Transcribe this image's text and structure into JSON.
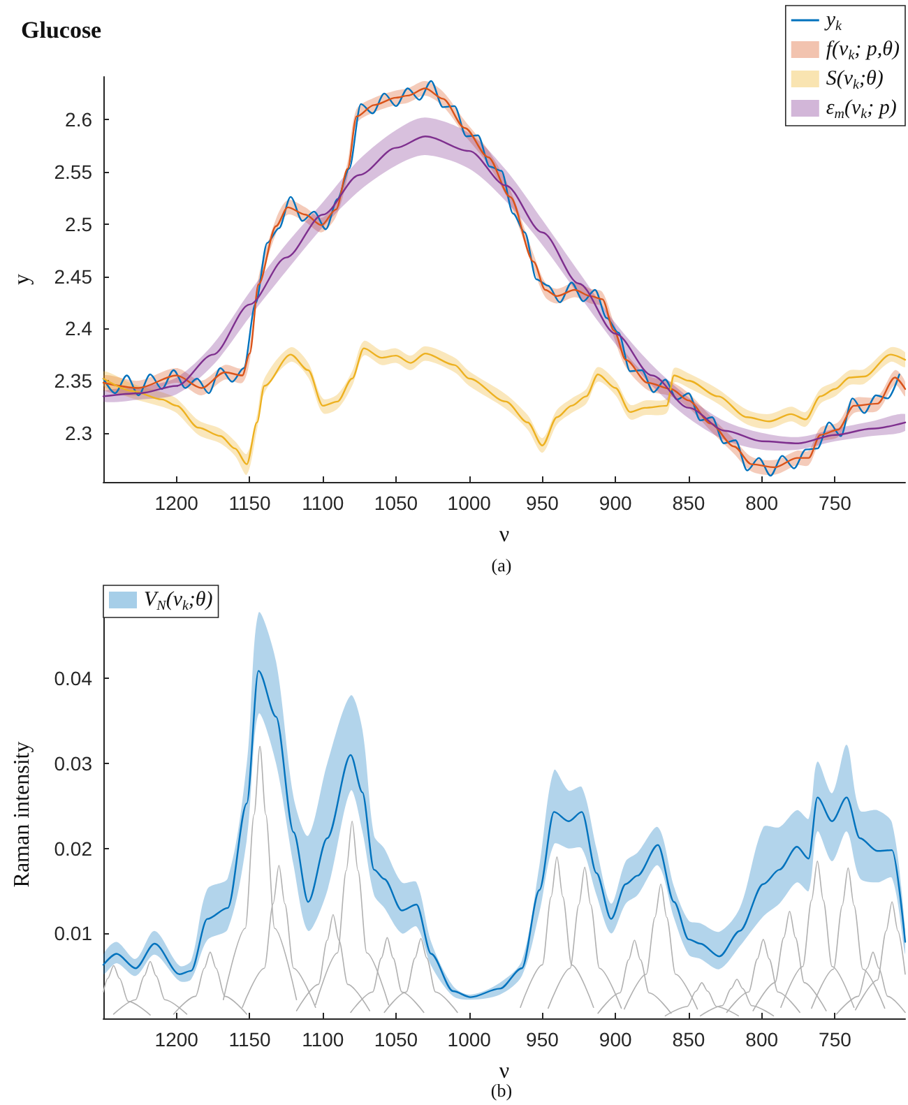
{
  "chart_data": [
    {
      "type": "line",
      "title": "Glucose",
      "xlabel": "ν",
      "ylabel": "y",
      "annotations": [
        "(a)"
      ],
      "xlim": [
        1250,
        702
      ],
      "xticks": [
        1200,
        1150,
        1100,
        1050,
        1000,
        950,
        900,
        850,
        800,
        750
      ],
      "ylim": [
        2.253,
        2.641
      ],
      "yticks": [
        2.3,
        2.35,
        2.4,
        2.45,
        2.5,
        2.55,
        2.6
      ],
      "grid": false,
      "legend": "top right",
      "marker": "none",
      "x": [
        1250,
        1242,
        1234,
        1226,
        1218,
        1210,
        1202,
        1194,
        1186,
        1178,
        1170,
        1162,
        1154,
        1146,
        1138,
        1130,
        1122,
        1114,
        1106,
        1098,
        1090,
        1082,
        1074,
        1066,
        1058,
        1050,
        1042,
        1034,
        1026,
        1018,
        1010,
        1002,
        994,
        986,
        978,
        970,
        962,
        954,
        946,
        938,
        930,
        922,
        914,
        906,
        898,
        890,
        882,
        874,
        866,
        858,
        850,
        842,
        834,
        826,
        818,
        810,
        802,
        794,
        786,
        778,
        770,
        762,
        754,
        746,
        738,
        730,
        722,
        714,
        706
      ],
      "series": [
        {
          "name": "y$_{k}$",
          "color": "#0072bd",
          "values": [
            2.352,
            2.338,
            2.355,
            2.336,
            2.356,
            2.342,
            2.36,
            2.343,
            2.352,
            2.338,
            2.362,
            2.349,
            2.362,
            2.424,
            2.482,
            2.496,
            2.526,
            2.503,
            2.512,
            2.495,
            2.524,
            2.553,
            2.615,
            2.606,
            2.625,
            2.613,
            2.63,
            2.619,
            2.637,
            2.612,
            2.613,
            2.584,
            2.585,
            2.555,
            2.551,
            2.51,
            2.492,
            2.447,
            2.441,
            2.425,
            2.444,
            2.426,
            2.437,
            2.41,
            2.396,
            2.359,
            2.36,
            2.339,
            2.351,
            2.332,
            2.338,
            2.312,
            2.315,
            2.29,
            2.293,
            2.264,
            2.276,
            2.259,
            2.278,
            2.266,
            2.284,
            2.285,
            2.31,
            2.297,
            2.333,
            2.319,
            2.336,
            2.333,
            2.356
          ]
        },
        {
          "name": "f(ν$_{k}$; p,θ)",
          "color": "#d95319",
          "x": [
            1250,
            1226,
            1200,
            1183,
            1167,
            1155,
            1150,
            1144,
            1132,
            1124,
            1112,
            1101,
            1091,
            1083,
            1077,
            1065,
            1050,
            1042,
            1030,
            1018,
            1003,
            987,
            972,
            956,
            948,
            940,
            928,
            917,
            909,
            901,
            893,
            878,
            862,
            850,
            835,
            819,
            807,
            791,
            776,
            768,
            760,
            748,
            737,
            721,
            709,
            702
          ],
          "values": [
            2.348,
            2.343,
            2.355,
            2.343,
            2.358,
            2.355,
            2.376,
            2.442,
            2.498,
            2.516,
            2.509,
            2.499,
            2.514,
            2.553,
            2.603,
            2.614,
            2.621,
            2.623,
            2.63,
            2.62,
            2.592,
            2.564,
            2.526,
            2.464,
            2.437,
            2.431,
            2.437,
            2.431,
            2.428,
            2.398,
            2.37,
            2.348,
            2.342,
            2.331,
            2.309,
            2.287,
            2.27,
            2.267,
            2.276,
            2.276,
            2.298,
            2.303,
            2.326,
            2.328,
            2.353,
            2.342
          ],
          "lower": [
            2.341,
            2.336,
            2.348,
            2.336,
            2.351,
            2.348,
            2.369,
            2.435,
            2.491,
            2.509,
            2.502,
            2.492,
            2.507,
            2.546,
            2.596,
            2.607,
            2.614,
            2.616,
            2.623,
            2.613,
            2.585,
            2.557,
            2.519,
            2.457,
            2.43,
            2.424,
            2.43,
            2.424,
            2.421,
            2.391,
            2.363,
            2.341,
            2.335,
            2.324,
            2.302,
            2.28,
            2.263,
            2.26,
            2.269,
            2.269,
            2.291,
            2.296,
            2.319,
            2.321,
            2.346,
            2.335
          ],
          "upper": [
            2.355,
            2.35,
            2.362,
            2.35,
            2.365,
            2.362,
            2.383,
            2.449,
            2.505,
            2.523,
            2.516,
            2.506,
            2.521,
            2.56,
            2.61,
            2.621,
            2.628,
            2.63,
            2.637,
            2.627,
            2.599,
            2.571,
            2.533,
            2.471,
            2.444,
            2.438,
            2.444,
            2.438,
            2.435,
            2.405,
            2.377,
            2.355,
            2.349,
            2.338,
            2.316,
            2.294,
            2.277,
            2.274,
            2.283,
            2.283,
            2.305,
            2.31,
            2.333,
            2.335,
            2.36,
            2.349
          ]
        },
        {
          "name": "S(ν$_{k}$;θ)",
          "color": "#edb120",
          "x": [
            1250,
            1230,
            1210,
            1200,
            1185,
            1170,
            1160,
            1152,
            1145,
            1140,
            1122,
            1110,
            1100,
            1090,
            1080,
            1072,
            1060,
            1050,
            1040,
            1030,
            1010,
            1000,
            975,
            960,
            950,
            940,
            930,
            920,
            912,
            900,
            890,
            880,
            865,
            860,
            850,
            830,
            810,
            795,
            780,
            770,
            760,
            750,
            740,
            730,
            712,
            702
          ],
          "values": [
            2.352,
            2.34,
            2.332,
            2.326,
            2.305,
            2.297,
            2.285,
            2.27,
            2.31,
            2.345,
            2.375,
            2.36,
            2.326,
            2.33,
            2.352,
            2.381,
            2.372,
            2.374,
            2.367,
            2.376,
            2.365,
            2.352,
            2.33,
            2.31,
            2.288,
            2.315,
            2.326,
            2.335,
            2.356,
            2.343,
            2.32,
            2.324,
            2.326,
            2.355,
            2.35,
            2.335,
            2.315,
            2.311,
            2.318,
            2.313,
            2.335,
            2.342,
            2.353,
            2.354,
            2.375,
            2.37
          ],
          "lower": [
            2.345,
            2.333,
            2.325,
            2.319,
            2.298,
            2.29,
            2.278,
            2.26,
            2.303,
            2.338,
            2.368,
            2.353,
            2.319,
            2.323,
            2.345,
            2.374,
            2.365,
            2.367,
            2.36,
            2.369,
            2.358,
            2.345,
            2.323,
            2.303,
            2.281,
            2.308,
            2.319,
            2.328,
            2.349,
            2.336,
            2.313,
            2.317,
            2.319,
            2.348,
            2.343,
            2.328,
            2.308,
            2.304,
            2.311,
            2.306,
            2.328,
            2.335,
            2.346,
            2.347,
            2.368,
            2.363
          ],
          "upper": [
            2.359,
            2.347,
            2.339,
            2.333,
            2.312,
            2.304,
            2.292,
            2.28,
            2.317,
            2.352,
            2.382,
            2.367,
            2.333,
            2.337,
            2.359,
            2.388,
            2.379,
            2.381,
            2.374,
            2.383,
            2.372,
            2.359,
            2.337,
            2.317,
            2.295,
            2.322,
            2.333,
            2.342,
            2.363,
            2.35,
            2.327,
            2.331,
            2.333,
            2.362,
            2.357,
            2.342,
            2.322,
            2.318,
            2.325,
            2.32,
            2.342,
            2.349,
            2.36,
            2.361,
            2.382,
            2.377
          ]
        },
        {
          "name": "ε$_{m}$(ν$_{k}$; p)",
          "color": "#7e2f8e",
          "x": [
            1250,
            1225,
            1200,
            1175,
            1150,
            1125,
            1100,
            1075,
            1050,
            1030,
            1000,
            975,
            950,
            925,
            900,
            875,
            850,
            825,
            800,
            775,
            750,
            725,
            702
          ],
          "values": [
            2.335,
            2.338,
            2.345,
            2.375,
            2.423,
            2.468,
            2.509,
            2.547,
            2.573,
            2.584,
            2.57,
            2.537,
            2.492,
            2.443,
            2.395,
            2.355,
            2.324,
            2.302,
            2.292,
            2.29,
            2.298,
            2.304,
            2.31
          ],
          "lower": [
            2.33,
            2.332,
            2.337,
            2.365,
            2.411,
            2.455,
            2.497,
            2.532,
            2.556,
            2.566,
            2.553,
            2.522,
            2.48,
            2.432,
            2.385,
            2.345,
            2.314,
            2.293,
            2.284,
            2.284,
            2.292,
            2.297,
            2.302
          ],
          "upper": [
            2.34,
            2.344,
            2.353,
            2.385,
            2.435,
            2.481,
            2.521,
            2.562,
            2.59,
            2.602,
            2.587,
            2.552,
            2.504,
            2.454,
            2.405,
            2.365,
            2.334,
            2.311,
            2.3,
            2.296,
            2.304,
            2.311,
            2.318
          ]
        }
      ]
    },
    {
      "type": "line",
      "xlabel": "ν",
      "ylabel": "Raman intensity",
      "annotations": [
        "(b)"
      ],
      "xlim": [
        1250,
        702
      ],
      "xticks": [
        1200,
        1150,
        1100,
        1050,
        1000,
        950,
        900,
        850,
        800,
        750
      ],
      "ylim": [
        0,
        0.048
      ],
      "yticks": [
        0.01,
        0.02,
        0.03,
        0.04
      ],
      "grid": false,
      "legend": "top left",
      "marker": "none",
      "series": [
        {
          "color": "#b0b0b0",
          "x": [
            1250,
            1247,
            1243,
            1239,
            1233,
            1218
          ],
          "values": [
            0.0031,
            0.0047,
            0.0062,
            0.0047,
            0.002,
            0.0004
          ]
        },
        {
          "color": "#b0b0b0",
          "x": [
            1243,
            1228,
            1222,
            1218,
            1214,
            1208,
            1193
          ],
          "values": [
            0.0005,
            0.0022,
            0.005,
            0.0067,
            0.005,
            0.0022,
            0.0005
          ]
        },
        {
          "color": "#b0b0b0",
          "x": [
            1202,
            1187,
            1181,
            1177,
            1173,
            1167,
            1152
          ],
          "values": [
            0.0005,
            0.0026,
            0.0059,
            0.0078,
            0.0059,
            0.0026,
            0.0005
          ]
        },
        {
          "color": "#b0b0b0",
          "x": [
            1168,
            1153,
            1147,
            1143,
            1139,
            1133,
            1118
          ],
          "values": [
            0.0022,
            0.0106,
            0.024,
            0.032,
            0.024,
            0.0106,
            0.0022
          ]
        },
        {
          "color": "#b0b0b0",
          "x": [
            1155,
            1140,
            1134,
            1130,
            1126,
            1120,
            1105
          ],
          "values": [
            0.0013,
            0.0059,
            0.0135,
            0.018,
            0.0135,
            0.0059,
            0.0013
          ]
        },
        {
          "color": "#b0b0b0",
          "x": [
            1118,
            1103,
            1097,
            1093,
            1089,
            1083,
            1068
          ],
          "values": [
            0.0009,
            0.004,
            0.0092,
            0.0122,
            0.0092,
            0.004,
            0.0009
          ]
        },
        {
          "color": "#b0b0b0",
          "x": [
            1105,
            1090,
            1084,
            1080,
            1076,
            1070,
            1055
          ],
          "values": [
            0.0016,
            0.0077,
            0.0174,
            0.0232,
            0.0174,
            0.0077,
            0.0016
          ]
        },
        {
          "color": "#b0b0b0",
          "x": [
            1081,
            1066,
            1060,
            1056,
            1052,
            1046,
            1031
          ],
          "values": [
            0.0007,
            0.0031,
            0.0071,
            0.0095,
            0.0071,
            0.0031,
            0.0007
          ]
        },
        {
          "color": "#b0b0b0",
          "x": [
            1058,
            1043,
            1037,
            1033,
            1029,
            1023,
            1008
          ],
          "values": [
            0.0007,
            0.0031,
            0.0071,
            0.0094,
            0.0071,
            0.0031,
            0.0007
          ]
        },
        {
          "color": "#b0b0b0",
          "x": [
            965,
            950,
            944,
            940,
            936,
            930,
            915
          ],
          "values": [
            0.0013,
            0.0063,
            0.0143,
            0.019,
            0.0143,
            0.0063,
            0.0013
          ]
        },
        {
          "color": "#b0b0b0",
          "x": [
            946,
            931,
            925,
            921,
            917,
            911,
            896
          ],
          "values": [
            0.0012,
            0.0059,
            0.0134,
            0.0178,
            0.0134,
            0.0059,
            0.0012
          ]
        },
        {
          "color": "#b0b0b0",
          "x": [
            912,
            897,
            891,
            887,
            883,
            877,
            862
          ],
          "values": [
            0.0006,
            0.003,
            0.0069,
            0.0092,
            0.0069,
            0.003,
            0.0006
          ]
        },
        {
          "color": "#b0b0b0",
          "x": [
            894,
            879,
            873,
            869,
            865,
            859,
            844
          ],
          "values": [
            0.0011,
            0.0052,
            0.0119,
            0.0158,
            0.0119,
            0.0052,
            0.0011
          ]
        },
        {
          "color": "#b0b0b0",
          "x": [
            866,
            851,
            845,
            841,
            837,
            831,
            816
          ],
          "values": [
            0.0003,
            0.0014,
            0.0032,
            0.0042,
            0.0032,
            0.0014,
            0.0003
          ]
        },
        {
          "color": "#b0b0b0",
          "x": [
            842,
            827,
            821,
            817,
            813,
            807,
            792
          ],
          "values": [
            0.0003,
            0.0015,
            0.0035,
            0.0046,
            0.0035,
            0.0015,
            0.0003
          ]
        },
        {
          "color": "#b0b0b0",
          "x": [
            824,
            809,
            803,
            799,
            795,
            789,
            774
          ],
          "values": [
            0.0007,
            0.0031,
            0.007,
            0.0093,
            0.007,
            0.0031,
            0.0007
          ]
        },
        {
          "color": "#b0b0b0",
          "x": [
            806,
            791,
            785,
            781,
            777,
            771,
            756
          ],
          "values": [
            0.0009,
            0.0042,
            0.0095,
            0.0126,
            0.0095,
            0.0042,
            0.0009
          ]
        },
        {
          "color": "#b0b0b0",
          "x": [
            787,
            772,
            766,
            762,
            758,
            752,
            737
          ],
          "values": [
            0.0013,
            0.0061,
            0.0139,
            0.0185,
            0.0139,
            0.0061,
            0.0013
          ]
        },
        {
          "color": "#b0b0b0",
          "x": [
            766,
            751,
            745,
            741,
            737,
            731,
            716
          ],
          "values": [
            0.0012,
            0.0058,
            0.0133,
            0.0177,
            0.0133,
            0.0058,
            0.0012
          ]
        },
        {
          "color": "#b0b0b0",
          "x": [
            749,
            734,
            728,
            724,
            720,
            714,
            702
          ],
          "values": [
            0.0005,
            0.0026,
            0.0059,
            0.0078,
            0.0059,
            0.0026,
            0.0007
          ]
        },
        {
          "color": "#b0b0b0",
          "x": [
            736,
            721,
            715,
            711,
            707,
            702
          ],
          "values": [
            0.001,
            0.0045,
            0.0103,
            0.0137,
            0.0103,
            0.0052
          ]
        },
        {
          "name": "V$_{N}$(ν$_{k}$;θ)",
          "color": "#0072bd",
          "x": [
            1250,
            1241,
            1228,
            1215,
            1198,
            1190,
            1179,
            1165,
            1152,
            1144,
            1132,
            1120,
            1110,
            1097,
            1081,
            1073,
            1065,
            1058,
            1046,
            1036,
            1026,
            1011,
            999,
            979,
            964,
            952,
            942,
            932,
            923,
            913,
            903,
            893,
            885,
            871,
            860,
            850,
            842,
            829,
            815,
            799,
            788,
            776,
            768,
            762,
            752,
            742,
            733,
            721,
            711,
            702
          ],
          "values": [
            0.0063,
            0.0076,
            0.0059,
            0.0088,
            0.0052,
            0.0056,
            0.0117,
            0.013,
            0.0253,
            0.0409,
            0.0355,
            0.0219,
            0.0137,
            0.0212,
            0.031,
            0.0266,
            0.0175,
            0.0164,
            0.0127,
            0.0134,
            0.0076,
            0.0032,
            0.0025,
            0.0035,
            0.0059,
            0.0151,
            0.0243,
            0.0232,
            0.0243,
            0.0171,
            0.0117,
            0.0158,
            0.0168,
            0.0204,
            0.0137,
            0.0093,
            0.0088,
            0.0073,
            0.0103,
            0.0158,
            0.0175,
            0.0202,
            0.0188,
            0.026,
            0.0232,
            0.026,
            0.0212,
            0.0197,
            0.0198,
            0.009
          ],
          "lower": [
            0.0052,
            0.0065,
            0.005,
            0.0075,
            0.0044,
            0.0046,
            0.0092,
            0.0105,
            0.021,
            0.0358,
            0.03,
            0.018,
            0.0103,
            0.015,
            0.0268,
            0.022,
            0.0145,
            0.013,
            0.01,
            0.0108,
            0.0062,
            0.0026,
            0.0022,
            0.0028,
            0.005,
            0.0125,
            0.0205,
            0.02,
            0.02,
            0.0145,
            0.01,
            0.0135,
            0.0145,
            0.018,
            0.0118,
            0.0075,
            0.007,
            0.0058,
            0.0085,
            0.012,
            0.0135,
            0.016,
            0.015,
            0.022,
            0.0185,
            0.022,
            0.0165,
            0.016,
            0.0165,
            0.0075
          ],
          "upper": [
            0.0075,
            0.009,
            0.007,
            0.0103,
            0.0062,
            0.0068,
            0.0152,
            0.0165,
            0.03,
            0.0477,
            0.042,
            0.026,
            0.0215,
            0.03,
            0.038,
            0.034,
            0.0215,
            0.02,
            0.016,
            0.016,
            0.009,
            0.0038,
            0.0028,
            0.0042,
            0.0068,
            0.018,
            0.0292,
            0.0268,
            0.0272,
            0.02,
            0.0135,
            0.0185,
            0.0195,
            0.0225,
            0.0155,
            0.0115,
            0.0112,
            0.0102,
            0.013,
            0.0225,
            0.0225,
            0.0245,
            0.0235,
            0.0302,
            0.0265,
            0.0322,
            0.0245,
            0.0245,
            0.023,
            0.0105
          ]
        }
      ]
    }
  ]
}
